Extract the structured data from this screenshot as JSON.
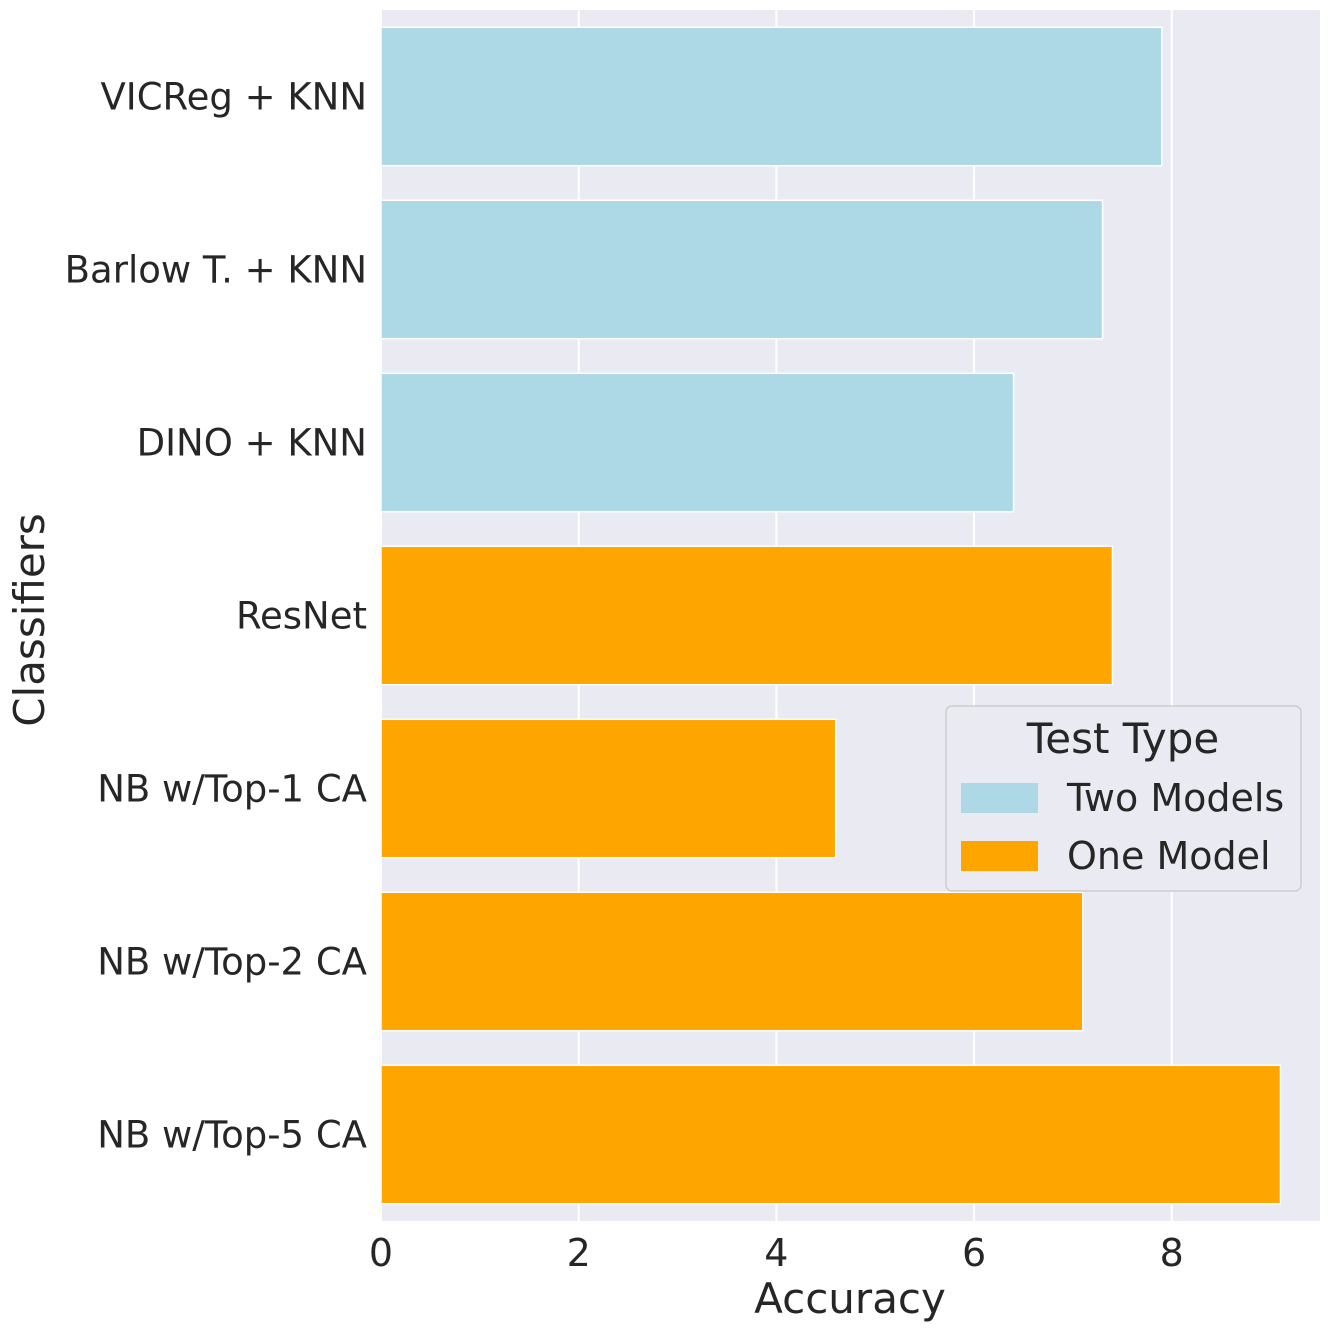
{
  "chart_data": {
    "type": "bar",
    "orientation": "horizontal",
    "xlabel": "Accuracy",
    "ylabel": "Classifiers",
    "xlim": [
      0,
      9.5
    ],
    "xticks": [
      0,
      2,
      4,
      6,
      8
    ],
    "grid": true,
    "categories": [
      "VICReg + KNN",
      "Barlow T. + KNN",
      "DINO + KNN",
      "ResNet",
      "NB w/Top-1 CA",
      "NB w/Top-2 CA",
      "NB w/Top-5 CA"
    ],
    "values": [
      7.9,
      7.3,
      6.4,
      7.4,
      4.6,
      7.1,
      9.1
    ],
    "groups": [
      "Two Models",
      "Two Models",
      "Two Models",
      "One Model",
      "One Model",
      "One Model",
      "One Model"
    ],
    "series": [
      {
        "name": "Two Models",
        "color": "#add8e6"
      },
      {
        "name": "One Model",
        "color": "#ffa500"
      }
    ],
    "legend": {
      "title": "Test Type",
      "placement": "center-right"
    }
  }
}
